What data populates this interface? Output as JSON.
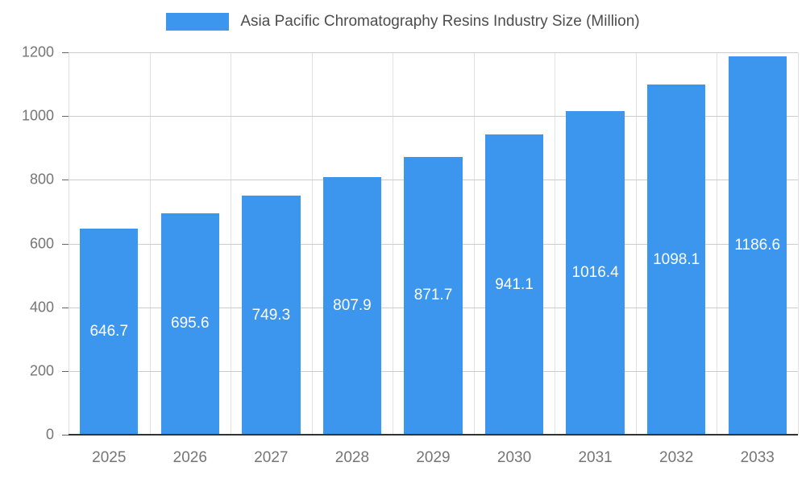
{
  "chart_data": {
    "type": "bar",
    "title": "Asia Pacific Chromatography Resins Industry Size (Million)",
    "categories": [
      "2025",
      "2026",
      "2027",
      "2028",
      "2029",
      "2030",
      "2031",
      "2032",
      "2033"
    ],
    "values": [
      646.7,
      695.6,
      749.3,
      807.9,
      871.7,
      941.1,
      1016.4,
      1098.1,
      1186.6
    ],
    "series": [
      {
        "name": "Asia Pacific Chromatography Resins Industry Size (Million)",
        "values": [
          646.7,
          695.6,
          749.3,
          807.9,
          871.7,
          941.1,
          1016.4,
          1098.1,
          1186.6
        ]
      }
    ],
    "xlabel": "",
    "ylabel": "",
    "ylim": [
      0,
      1200
    ],
    "yticks": [
      0,
      200,
      400,
      600,
      800,
      1000,
      1200
    ],
    "grid": true,
    "legend_position": "top",
    "colors": {
      "bar": "#3d96ee",
      "bar_value_label": "#ffffff",
      "gridline": "#cccccc",
      "axis_baseline": "#333333",
      "tick_label": "#757575",
      "legend_text": "#4d4d4d",
      "background": "#ffffff"
    }
  }
}
